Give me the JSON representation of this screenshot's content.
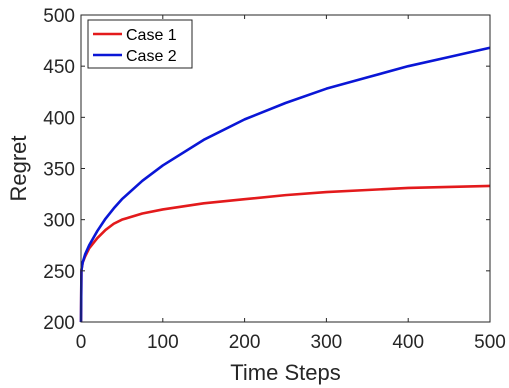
{
  "chart_data": {
    "type": "line",
    "title": "",
    "xlabel": "Time Steps",
    "ylabel": "Regret",
    "xlim": [
      0,
      500
    ],
    "ylim": [
      200,
      500
    ],
    "xticks": [
      "0",
      "100",
      "200",
      "300",
      "400",
      "500"
    ],
    "yticks": [
      "200",
      "250",
      "300",
      "350",
      "400",
      "450",
      "500"
    ],
    "grid": false,
    "legend_position": "top-left",
    "series": [
      {
        "name": "Case 1",
        "color": "#e31a1c",
        "x": [
          0,
          0.5,
          1,
          2,
          5,
          10,
          20,
          30,
          40,
          50,
          75,
          100,
          150,
          200,
          250,
          300,
          350,
          400,
          450,
          500
        ],
        "y": [
          200,
          250,
          253,
          258,
          264,
          272,
          282,
          290,
          296,
          300,
          306,
          310,
          316,
          320,
          324,
          327,
          329,
          331,
          332,
          333
        ]
      },
      {
        "name": "Case 2",
        "color": "#0a16d6",
        "x": [
          0,
          0.5,
          1,
          2,
          5,
          10,
          20,
          30,
          40,
          50,
          75,
          100,
          150,
          200,
          250,
          300,
          350,
          400,
          450,
          500
        ],
        "y": [
          200,
          250,
          253,
          258,
          266,
          275,
          289,
          301,
          311,
          320,
          338,
          353,
          378,
          398,
          414,
          428,
          439,
          450,
          459,
          468
        ]
      }
    ]
  }
}
